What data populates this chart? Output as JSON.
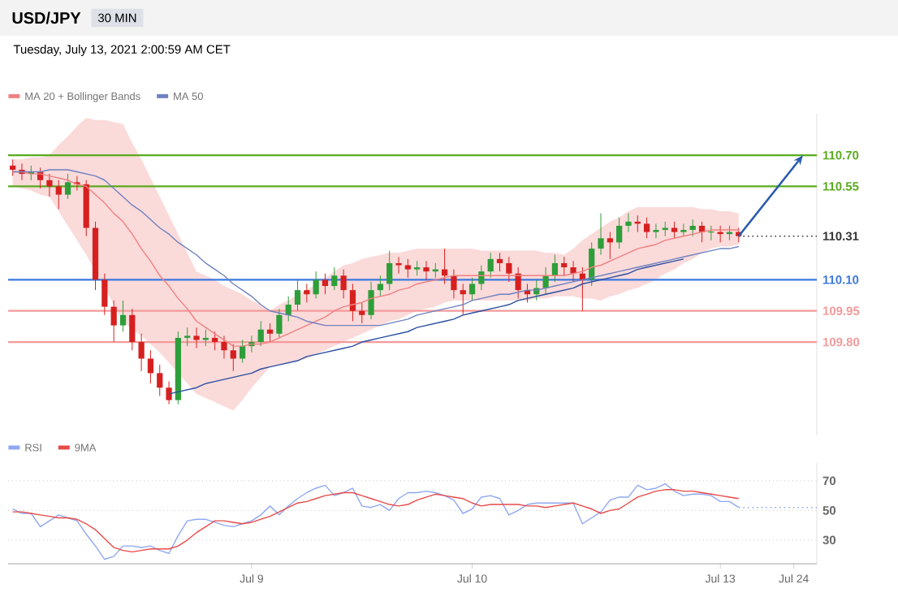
{
  "chart_data": [
    {
      "type": "candlestick",
      "title": "USD/JPY",
      "subtitle": "Tuesday, July 13, 2021 2:00:59 AM CET",
      "annotations": [
        "30 MIN"
      ],
      "categories": [
        null,
        null,
        null,
        null,
        null,
        null,
        null,
        null,
        null,
        null,
        null,
        null,
        null,
        null,
        null,
        null,
        null,
        null,
        null,
        null,
        null,
        null,
        null,
        null,
        null,
        null,
        null,
        null,
        null,
        null,
        null,
        null,
        null,
        null,
        null,
        null,
        null,
        null,
        null,
        null,
        null,
        null,
        null,
        null,
        null,
        null,
        null,
        null,
        null,
        null,
        null,
        null,
        null,
        null,
        null,
        null,
        null,
        null,
        null,
        null,
        null,
        null,
        null,
        null,
        null,
        null,
        null,
        null,
        null,
        null,
        null,
        null,
        null,
        null,
        null,
        null,
        null,
        null,
        null,
        null,
        null,
        null,
        null,
        null,
        null,
        null,
        null,
        null
      ],
      "ohlc": [
        [
          110.65,
          110.68,
          110.6,
          110.63
        ],
        [
          110.63,
          110.66,
          110.58,
          110.61
        ],
        [
          110.61,
          110.65,
          110.58,
          110.62
        ],
        [
          110.62,
          110.64,
          110.54,
          110.58
        ],
        [
          110.58,
          110.61,
          110.5,
          110.55
        ],
        [
          110.55,
          110.58,
          110.44,
          110.51
        ],
        [
          110.51,
          110.61,
          110.49,
          110.57
        ],
        [
          110.57,
          110.6,
          110.53,
          110.56
        ],
        [
          110.56,
          110.58,
          110.31,
          110.35
        ],
        [
          110.35,
          110.38,
          110.05,
          110.1
        ],
        [
          110.1,
          110.13,
          109.93,
          109.97
        ],
        [
          109.97,
          110.0,
          109.8,
          109.88
        ],
        [
          109.88,
          110.0,
          109.85,
          109.93
        ],
        [
          109.93,
          109.96,
          109.76,
          109.8
        ],
        [
          109.8,
          109.84,
          109.66,
          109.72
        ],
        [
          109.72,
          109.76,
          109.6,
          109.65
        ],
        [
          109.65,
          109.69,
          109.54,
          109.58
        ],
        [
          109.58,
          109.61,
          109.5,
          109.52
        ],
        [
          109.52,
          109.85,
          109.5,
          109.82
        ],
        [
          109.82,
          109.87,
          109.78,
          109.83
        ],
        [
          109.83,
          109.87,
          109.77,
          109.81
        ],
        [
          109.81,
          109.86,
          109.78,
          109.82
        ],
        [
          109.82,
          109.85,
          109.76,
          109.8
        ],
        [
          109.8,
          109.83,
          109.72,
          109.76
        ],
        [
          109.76,
          109.79,
          109.66,
          109.72
        ],
        [
          109.72,
          109.81,
          109.7,
          109.78
        ],
        [
          109.78,
          109.83,
          109.75,
          109.8
        ],
        [
          109.8,
          109.9,
          109.78,
          109.86
        ],
        [
          109.86,
          109.89,
          109.8,
          109.84
        ],
        [
          109.84,
          109.96,
          109.82,
          109.93
        ],
        [
          109.93,
          110.02,
          109.9,
          109.98
        ],
        [
          109.98,
          110.1,
          109.95,
          110.05
        ],
        [
          110.05,
          110.08,
          109.99,
          110.03
        ],
        [
          110.03,
          110.14,
          110.01,
          110.1
        ],
        [
          110.1,
          110.13,
          110.03,
          110.07
        ],
        [
          110.07,
          110.16,
          110.05,
          110.12
        ],
        [
          110.12,
          110.15,
          110.01,
          110.05
        ],
        [
          110.05,
          110.08,
          109.9,
          109.95
        ],
        [
          109.95,
          109.99,
          109.89,
          109.93
        ],
        [
          109.93,
          110.09,
          109.91,
          110.05
        ],
        [
          110.05,
          110.12,
          110.02,
          110.08
        ],
        [
          110.08,
          110.24,
          110.05,
          110.18
        ],
        [
          110.18,
          110.21,
          110.13,
          110.17
        ],
        [
          110.17,
          110.2,
          110.11,
          110.15
        ],
        [
          110.15,
          110.19,
          110.12,
          110.16
        ],
        [
          110.16,
          110.19,
          110.1,
          110.14
        ],
        [
          110.14,
          110.18,
          110.11,
          110.15
        ],
        [
          110.15,
          110.25,
          110.08,
          110.12
        ],
        [
          110.12,
          110.15,
          110.01,
          110.05
        ],
        [
          110.05,
          110.08,
          109.93,
          110.03
        ],
        [
          110.03,
          110.11,
          110.0,
          110.08
        ],
        [
          110.08,
          110.17,
          110.05,
          110.14
        ],
        [
          110.14,
          110.23,
          110.11,
          110.2
        ],
        [
          110.2,
          110.23,
          110.14,
          110.18
        ],
        [
          110.18,
          110.21,
          110.09,
          110.13
        ],
        [
          110.13,
          110.16,
          110.01,
          110.05
        ],
        [
          110.05,
          110.08,
          109.99,
          110.03
        ],
        [
          110.03,
          110.1,
          110.0,
          110.06
        ],
        [
          110.06,
          110.16,
          110.03,
          110.12
        ],
        [
          110.12,
          110.22,
          110.09,
          110.18
        ],
        [
          110.18,
          110.21,
          110.12,
          110.16
        ],
        [
          110.16,
          110.19,
          110.09,
          110.13
        ],
        [
          110.13,
          110.16,
          109.95,
          110.1
        ],
        [
          110.1,
          110.28,
          110.07,
          110.25
        ],
        [
          110.25,
          110.42,
          110.22,
          110.3
        ],
        [
          110.3,
          110.33,
          110.2,
          110.28
        ],
        [
          110.28,
          110.4,
          110.25,
          110.36
        ],
        [
          110.36,
          110.42,
          110.33,
          110.38
        ],
        [
          110.38,
          110.41,
          110.33,
          110.37
        ],
        [
          110.37,
          110.4,
          110.3,
          110.33
        ],
        [
          110.33,
          110.37,
          110.3,
          110.34
        ],
        [
          110.34,
          110.38,
          110.31,
          110.35
        ],
        [
          110.35,
          110.38,
          110.3,
          110.33
        ],
        [
          110.33,
          110.37,
          110.31,
          110.34
        ],
        [
          110.34,
          110.39,
          110.31,
          110.36
        ],
        [
          110.36,
          110.38,
          110.28,
          110.33
        ],
        [
          110.33,
          110.36,
          110.29,
          110.33
        ],
        [
          110.33,
          110.36,
          110.28,
          110.32
        ],
        [
          110.32,
          110.36,
          110.29,
          110.33
        ],
        [
          110.33,
          110.35,
          110.28,
          110.31
        ],
        null,
        null,
        null,
        null,
        null,
        null,
        null,
        null
      ],
      "series": [
        {
          "name": "MA 20 + Bollinger Bands",
          "type": "line",
          "color": "#f08080",
          "values": [
            110.62,
            110.62,
            110.61,
            110.61,
            110.6,
            110.59,
            110.58,
            110.56,
            110.55,
            110.51,
            110.47,
            110.42,
            110.38,
            110.32,
            110.25,
            110.19,
            110.12,
            110.07,
            110.01,
            109.96,
            109.9,
            109.87,
            109.84,
            109.81,
            109.78,
            109.78,
            109.79,
            109.79,
            109.8,
            109.82,
            109.84,
            109.86,
            109.88,
            109.9,
            109.92,
            109.95,
            109.97,
            109.98,
            109.99,
            110.01,
            110.02,
            110.03,
            110.05,
            110.06,
            110.08,
            110.09,
            110.1,
            110.11,
            110.12,
            110.12,
            110.12,
            110.12,
            110.12,
            110.12,
            110.12,
            110.12,
            110.12,
            110.12,
            110.12,
            110.12,
            110.12,
            110.13,
            110.14,
            110.16,
            110.17,
            110.19,
            110.21,
            110.23,
            110.25,
            110.26,
            110.27,
            110.29,
            110.3,
            110.31,
            110.32,
            110.33,
            110.34,
            110.34,
            110.34,
            110.34,
            null,
            null,
            null,
            null,
            null,
            null,
            null,
            null
          ],
          "upper": [
            110.68,
            110.68,
            110.69,
            110.69,
            110.7,
            110.75,
            110.79,
            110.84,
            110.88,
            110.87,
            110.87,
            110.86,
            110.85,
            110.76,
            110.68,
            110.59,
            110.5,
            110.41,
            110.32,
            110.23,
            110.14,
            110.12,
            110.1,
            110.07,
            110.05,
            110.03,
            110.0,
            109.98,
            109.95,
            109.98,
            110.0,
            110.03,
            110.05,
            110.08,
            110.11,
            110.14,
            110.17,
            110.18,
            110.2,
            110.21,
            110.22,
            110.23,
            110.23,
            110.24,
            110.25,
            110.25,
            110.25,
            110.25,
            110.25,
            110.25,
            110.25,
            110.24,
            110.24,
            110.24,
            110.24,
            110.24,
            110.24,
            110.24,
            110.23,
            110.23,
            110.22,
            110.25,
            110.29,
            110.32,
            110.35,
            110.38,
            110.4,
            110.43,
            110.45,
            110.45,
            110.45,
            110.45,
            110.45,
            110.45,
            110.45,
            110.44,
            110.44,
            110.43,
            110.43,
            110.42,
            null,
            null,
            null,
            null,
            null,
            null,
            null,
            null
          ],
          "lower": [
            110.55,
            110.54,
            110.53,
            110.51,
            110.5,
            110.43,
            110.36,
            110.29,
            110.22,
            110.14,
            110.06,
            109.98,
            109.9,
            109.86,
            109.83,
            109.79,
            109.75,
            109.7,
            109.65,
            109.6,
            109.55,
            109.53,
            109.51,
            109.49,
            109.47,
            109.52,
            109.58,
            109.63,
            109.68,
            109.69,
            109.7,
            109.71,
            109.72,
            109.74,
            109.76,
            109.78,
            109.8,
            109.82,
            109.84,
            109.86,
            109.88,
            109.9,
            109.91,
            109.93,
            109.95,
            109.96,
            109.97,
            109.99,
            110.0,
            110.0,
            110.0,
            110.0,
            110.0,
            110.0,
            110.0,
            110.0,
            110.0,
            110.01,
            110.01,
            110.02,
            110.02,
            110.02,
            110.01,
            110.01,
            110.0,
            110.02,
            110.03,
            110.05,
            110.06,
            110.08,
            110.1,
            110.13,
            110.15,
            110.18,
            110.2,
            110.23,
            110.25,
            110.26,
            110.26,
            110.27,
            null,
            null,
            null,
            null,
            null,
            null,
            null,
            null
          ]
        },
        {
          "name": "MA 50",
          "type": "line",
          "color": "#6f82c0",
          "values": [
            110.62,
            110.62,
            110.62,
            110.62,
            110.63,
            110.63,
            110.63,
            110.62,
            110.61,
            110.6,
            110.58,
            110.54,
            110.5,
            110.46,
            110.43,
            110.39,
            110.35,
            110.32,
            110.28,
            110.25,
            110.22,
            110.18,
            110.15,
            110.12,
            110.08,
            110.05,
            110.02,
            109.98,
            109.95,
            109.94,
            109.93,
            109.92,
            109.9,
            109.89,
            109.88,
            109.88,
            109.88,
            109.88,
            109.88,
            109.88,
            109.88,
            109.89,
            109.9,
            109.91,
            109.93,
            109.94,
            109.95,
            109.96,
            109.97,
            109.98,
            110.0,
            110.01,
            110.02,
            110.03,
            110.03,
            110.04,
            110.05,
            110.05,
            110.06,
            110.07,
            110.08,
            110.09,
            110.1,
            110.11,
            110.12,
            110.13,
            110.14,
            110.15,
            110.16,
            110.17,
            110.18,
            110.19,
            110.2,
            110.21,
            110.22,
            110.23,
            110.24,
            110.25,
            110.25,
            110.26,
            null,
            null,
            null,
            null,
            null,
            null,
            null,
            null
          ]
        },
        {
          "type": "line",
          "color": "#2a4fa0",
          "values": [
            null,
            null,
            null,
            null,
            null,
            null,
            null,
            null,
            null,
            null,
            null,
            null,
            null,
            null,
            null,
            null,
            null,
            109.55,
            109.56,
            109.57,
            109.58,
            109.6,
            109.61,
            109.62,
            109.63,
            109.64,
            109.65,
            109.67,
            109.68,
            109.69,
            109.7,
            109.71,
            109.73,
            109.74,
            109.75,
            109.76,
            109.77,
            109.78,
            109.8,
            109.81,
            109.82,
            109.83,
            109.84,
            109.85,
            109.87,
            109.88,
            109.89,
            109.9,
            109.91,
            109.93,
            109.94,
            109.95,
            109.96,
            109.97,
            109.98,
            110.0,
            110.01,
            110.02,
            110.03,
            110.04,
            110.05,
            110.06,
            110.08,
            110.09,
            110.1,
            110.11,
            110.12,
            110.13,
            110.15,
            110.16,
            110.17,
            110.18,
            110.19,
            110.2,
            null,
            null,
            null,
            null,
            null,
            null,
            null,
            null,
            null,
            null,
            null,
            null,
            null,
            null
          ]
        }
      ],
      "ylim": [
        109.35,
        110.9
      ],
      "yticks": [
        {
          "value": 110.7,
          "label": "110.70"
        },
        {
          "value": 110.55,
          "label": "110.55"
        },
        {
          "value": 110.31,
          "label": "110.31"
        },
        {
          "value": 110.1,
          "label": "110.10"
        },
        {
          "value": 109.95,
          "label": "109.95"
        },
        {
          "value": 109.8,
          "label": "109.80"
        }
      ],
      "ref_lines": [
        {
          "axis": "y",
          "value": 110.7,
          "color": "#5aab1e",
          "line_style": "solid"
        },
        {
          "axis": "y",
          "value": 110.55,
          "color": "#5aab1e",
          "line_style": "solid"
        },
        {
          "axis": "y",
          "value": 110.31,
          "color": "#333333",
          "line_style": "dotted"
        },
        {
          "axis": "y",
          "value": 110.1,
          "color": "#3d78e0",
          "line_style": "solid"
        },
        {
          "axis": "y",
          "value": 109.95,
          "color": "#f49a9a",
          "line_style": "solid"
        },
        {
          "axis": "y",
          "value": 109.8,
          "color": "#f49a9a",
          "line_style": "solid"
        }
      ],
      "tick_labels": "y",
      "legend": "top left"
    },
    {
      "type": "line",
      "categories": [
        null,
        null,
        null,
        null,
        null,
        null,
        null,
        null,
        null,
        null,
        null,
        null,
        null,
        null,
        null,
        null,
        null,
        null,
        null,
        null,
        null,
        null,
        null,
        null,
        null,
        null,
        "Jul 9",
        null,
        null,
        null,
        null,
        null,
        null,
        null,
        null,
        null,
        null,
        null,
        null,
        null,
        null,
        null,
        null,
        null,
        null,
        null,
        null,
        null,
        null,
        null,
        "Jul 10",
        null,
        null,
        null,
        null,
        null,
        null,
        null,
        null,
        null,
        null,
        null,
        null,
        null,
        null,
        null,
        null,
        null,
        null,
        null,
        null,
        null,
        null,
        null,
        null,
        null,
        null,
        "Jul 13",
        null,
        null,
        null,
        null,
        null,
        null,
        null,
        "Jul 24",
        null,
        null
      ],
      "series": [
        {
          "name": "RSI",
          "type": "line",
          "color": "#8fa8f0",
          "values": [
            51,
            48,
            48,
            39,
            43,
            47,
            45,
            43,
            34,
            26,
            17,
            19,
            26,
            26,
            25,
            26,
            23,
            21,
            33,
            43,
            44,
            44,
            42,
            40,
            39,
            41,
            43,
            47,
            53,
            47,
            53,
            58,
            62,
            65,
            67,
            60,
            62,
            65,
            53,
            52,
            54,
            50,
            58,
            62,
            62,
            63,
            62,
            60,
            57,
            48,
            51,
            59,
            60,
            58,
            47,
            50,
            54,
            55,
            55,
            55,
            55,
            55,
            41,
            45,
            49,
            57,
            59,
            59,
            67,
            64,
            65,
            68,
            63,
            60,
            61,
            61,
            60,
            56,
            56,
            52,
            null,
            null,
            null,
            null,
            null,
            null,
            null,
            null
          ]
        },
        {
          "name": "9MA",
          "type": "line",
          "color": "#e84a4a",
          "values": [
            49,
            49,
            48,
            47,
            46,
            45,
            45,
            44,
            41,
            37,
            31,
            25,
            23,
            22,
            23,
            24,
            24,
            24,
            26,
            30,
            35,
            39,
            43,
            43,
            42,
            41,
            42,
            44,
            46,
            49,
            52,
            55,
            56,
            58,
            60,
            61,
            62,
            62,
            60,
            58,
            56,
            54,
            53,
            54,
            57,
            59,
            61,
            60,
            59,
            58,
            55,
            53,
            54,
            54,
            54,
            54,
            53,
            53,
            52,
            53,
            54,
            55,
            53,
            51,
            48,
            50,
            51,
            55,
            59,
            61,
            63,
            64,
            64,
            63,
            63,
            62,
            61,
            60,
            59,
            58,
            null,
            null,
            null,
            null,
            null,
            null,
            null,
            null
          ]
        }
      ],
      "ylim": [
        14,
        82
      ],
      "yticks": [
        30,
        50,
        70
      ],
      "ref_lines": [
        {
          "axis": "y",
          "value": 52,
          "color": "#8fa8f0",
          "line_style": "dotted"
        }
      ],
      "grid": "y",
      "legend": "top left"
    }
  ]
}
